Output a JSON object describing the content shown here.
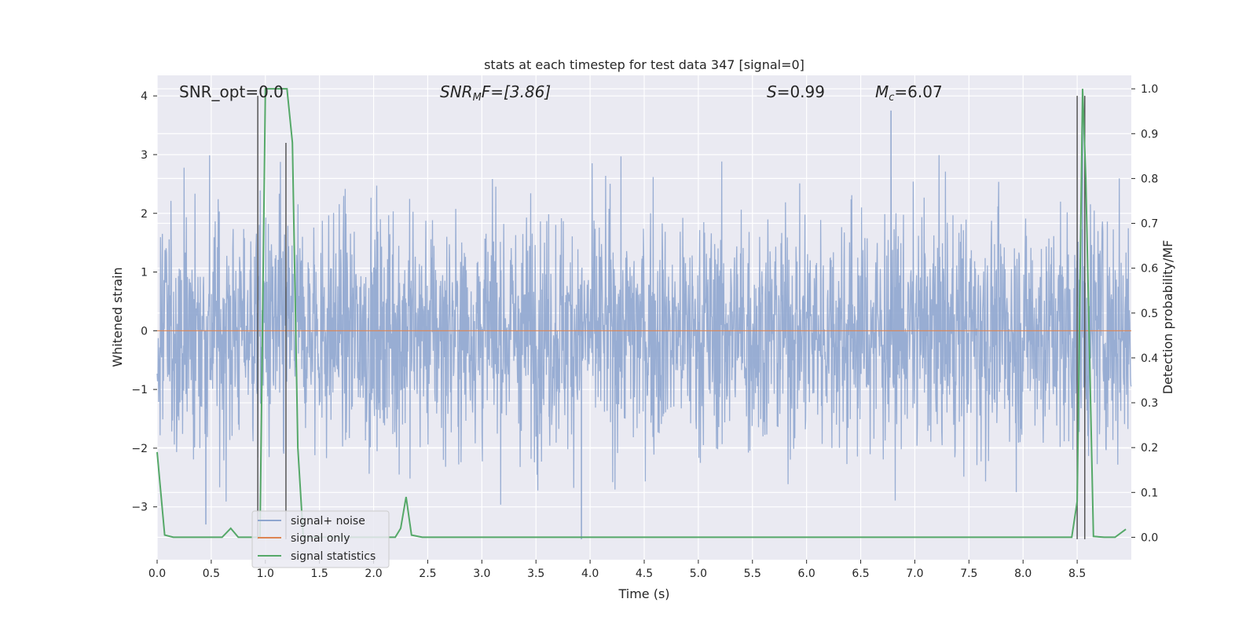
{
  "chart_data": {
    "type": "line",
    "title": "stats at each timestep for test data 347 [signal=0]",
    "xlabel": "Time (s)",
    "ylabel_left": "Whitened strain",
    "ylabel_right": "Detection probability/MF",
    "xlim": [
      0,
      9
    ],
    "ylim_left": [
      -3.9,
      4.35
    ],
    "ylim_right": [
      -0.05,
      1.03
    ],
    "x_ticks": [
      "0.0",
      "0.5",
      "1.0",
      "1.5",
      "2.0",
      "2.5",
      "3.0",
      "3.5",
      "4.0",
      "4.5",
      "5.0",
      "5.5",
      "6.0",
      "6.5",
      "7.0",
      "7.5",
      "8.0",
      "8.5"
    ],
    "x_tick_values": [
      0,
      0.5,
      1,
      1.5,
      2,
      2.5,
      3,
      3.5,
      4,
      4.5,
      5,
      5.5,
      6,
      6.5,
      7,
      7.5,
      8,
      8.5
    ],
    "y_left_ticks": [
      "−3",
      "−2",
      "−1",
      "0",
      "1",
      "2",
      "3",
      "4"
    ],
    "y_left_tick_values": [
      -3,
      -2,
      -1,
      0,
      1,
      2,
      3,
      4
    ],
    "y_right_ticks": [
      "0.0",
      "0.1",
      "0.2",
      "0.3",
      "0.4",
      "0.5",
      "0.6",
      "0.7",
      "0.8",
      "0.9",
      "1.0"
    ],
    "y_right_tick_values": [
      0,
      0.1,
      0.2,
      0.3,
      0.4,
      0.5,
      0.6,
      0.7,
      0.8,
      0.9,
      1.0
    ],
    "grid": true,
    "legend_position": "lower-left",
    "annotations": [
      {
        "text": "SNR_opt=0.0",
        "x": 0.2,
        "y": 4.05
      },
      {
        "text": "SNR_MF=[3.86]",
        "x": 2.6,
        "y": 4.05
      },
      {
        "text": "S=0.99",
        "x": 5.6,
        "y": 4.05
      },
      {
        "text": "M_c=6.07",
        "x": 6.6,
        "y": 4.05
      }
    ],
    "annotation_labels": {
      "snr_opt": "SNR_opt=0.0",
      "snr_mf_main": "SNR",
      "snr_mf_sub": "M",
      "snr_mf_rest": "F=[3.86]",
      "s_main": "S",
      "s_rest": "=0.99",
      "mc_main": "M",
      "mc_sub": "c",
      "mc_rest": "=6.07"
    },
    "series": [
      {
        "name": "signal+ noise",
        "color": "#8fa6cf",
        "axis": "left",
        "description_of_shape": "noise",
        "amplitude_typical": 1.0,
        "peaks": [
          {
            "x": 0.45,
            "y": -3.3
          },
          {
            "x": 3.92,
            "y": -3.55
          },
          {
            "x": 6.78,
            "y": 3.75
          },
          {
            "x": 8.55,
            "y": 4.0
          }
        ]
      },
      {
        "name": "signal only",
        "color": "#dd8452",
        "axis": "left",
        "x": [
          0,
          9
        ],
        "y": [
          0,
          0
        ]
      },
      {
        "name": "signal statistics",
        "color": "#55a868",
        "axis": "right",
        "x": [
          0,
          0.07,
          0.15,
          0.3,
          0.5,
          0.6,
          0.68,
          0.75,
          0.9,
          0.93,
          0.95,
          1.0,
          1.2,
          1.25,
          1.3,
          1.35,
          2.2,
          2.25,
          2.3,
          2.35,
          2.45,
          3,
          4,
          5,
          6,
          7,
          8,
          8.45,
          8.5,
          8.55,
          8.58,
          8.65,
          8.75,
          8.85,
          8.95
        ],
        "y": [
          0.19,
          0.005,
          0,
          0,
          0,
          0,
          0.02,
          0,
          0,
          0,
          0,
          1.0,
          1.0,
          0.88,
          0.2,
          0,
          0,
          0.02,
          0.09,
          0.005,
          0,
          0,
          0,
          0,
          0,
          0,
          0,
          0,
          0.08,
          1.0,
          0.8,
          0.002,
          0,
          0,
          0.018
        ]
      }
    ],
    "vertical_lines": {
      "color": "#555555",
      "axis": "left",
      "lines": [
        {
          "x": 0.93,
          "y_min": -3.55,
          "y_max": 4.0
        },
        {
          "x": 1.19,
          "y_min": -3.55,
          "y_max": 3.2
        },
        {
          "x": 8.5,
          "y_min": -3.55,
          "y_max": 4.0
        },
        {
          "x": 8.57,
          "y_min": -3.55,
          "y_max": 4.0
        }
      ]
    }
  }
}
